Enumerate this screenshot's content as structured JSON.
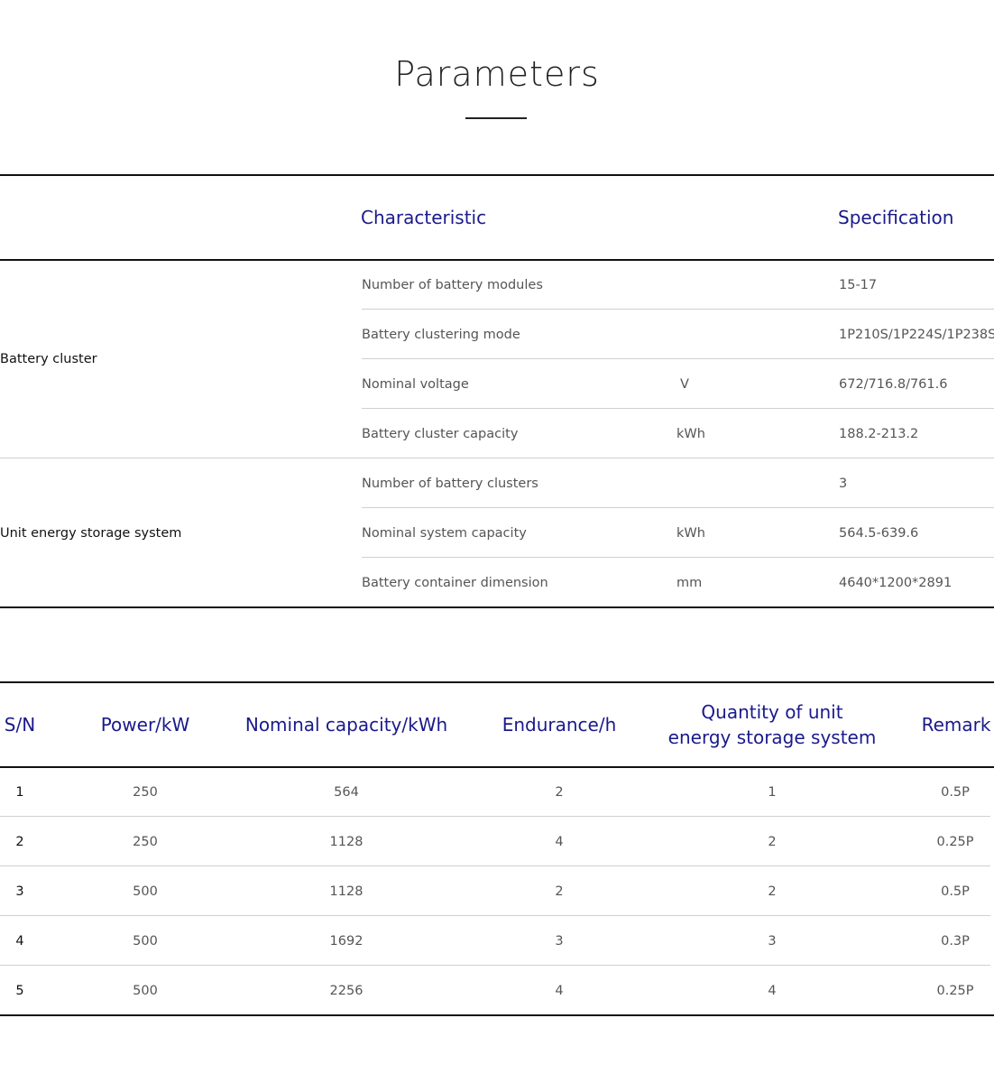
{
  "title": "Parameters",
  "specs": {
    "headers": {
      "characteristic": "Characteristic",
      "specification": "Specification"
    },
    "groups": [
      {
        "label": "Battery cluster",
        "rows": [
          {
            "characteristic": "Number of battery modules",
            "unit": "",
            "value": "15-17"
          },
          {
            "characteristic": "Battery clustering mode",
            "unit": "",
            "value": "1P210S/1P224S/1P238S"
          },
          {
            "characteristic": "Nominal voltage",
            "unit": "V",
            "value": "672/716.8/761.6"
          },
          {
            "characteristic": "Battery cluster capacity",
            "unit": "kWh",
            "value": "188.2-213.2"
          }
        ]
      },
      {
        "label": "Unit energy storage system",
        "rows": [
          {
            "characteristic": "Number of battery clusters",
            "unit": "",
            "value": "3"
          },
          {
            "characteristic": "Nominal system capacity",
            "unit": "kWh",
            "value": "564.5-639.6"
          },
          {
            "characteristic": "Battery container dimension",
            "unit": "mm",
            "value": "4640*1200*2891"
          }
        ]
      }
    ]
  },
  "configs": {
    "headers": [
      "S/N",
      "Power/kW",
      "Nominal capacity/kWh",
      "Endurance/h",
      "Quantity of unit\nenergy storage system",
      "Remark"
    ],
    "rows": [
      [
        "1",
        "250",
        "564",
        "2",
        "1",
        "0.5P"
      ],
      [
        "2",
        "250",
        "1128",
        "4",
        "2",
        "0.25P"
      ],
      [
        "3",
        "500",
        "1128",
        "2",
        "2",
        "0.5P"
      ],
      [
        "4",
        "500",
        "1692",
        "3",
        "3",
        "0.3P"
      ],
      [
        "5",
        "500",
        "2256",
        "4",
        "4",
        "0.25P"
      ]
    ]
  },
  "colors": {
    "header": "#1a1a8c",
    "body": "#555555"
  }
}
